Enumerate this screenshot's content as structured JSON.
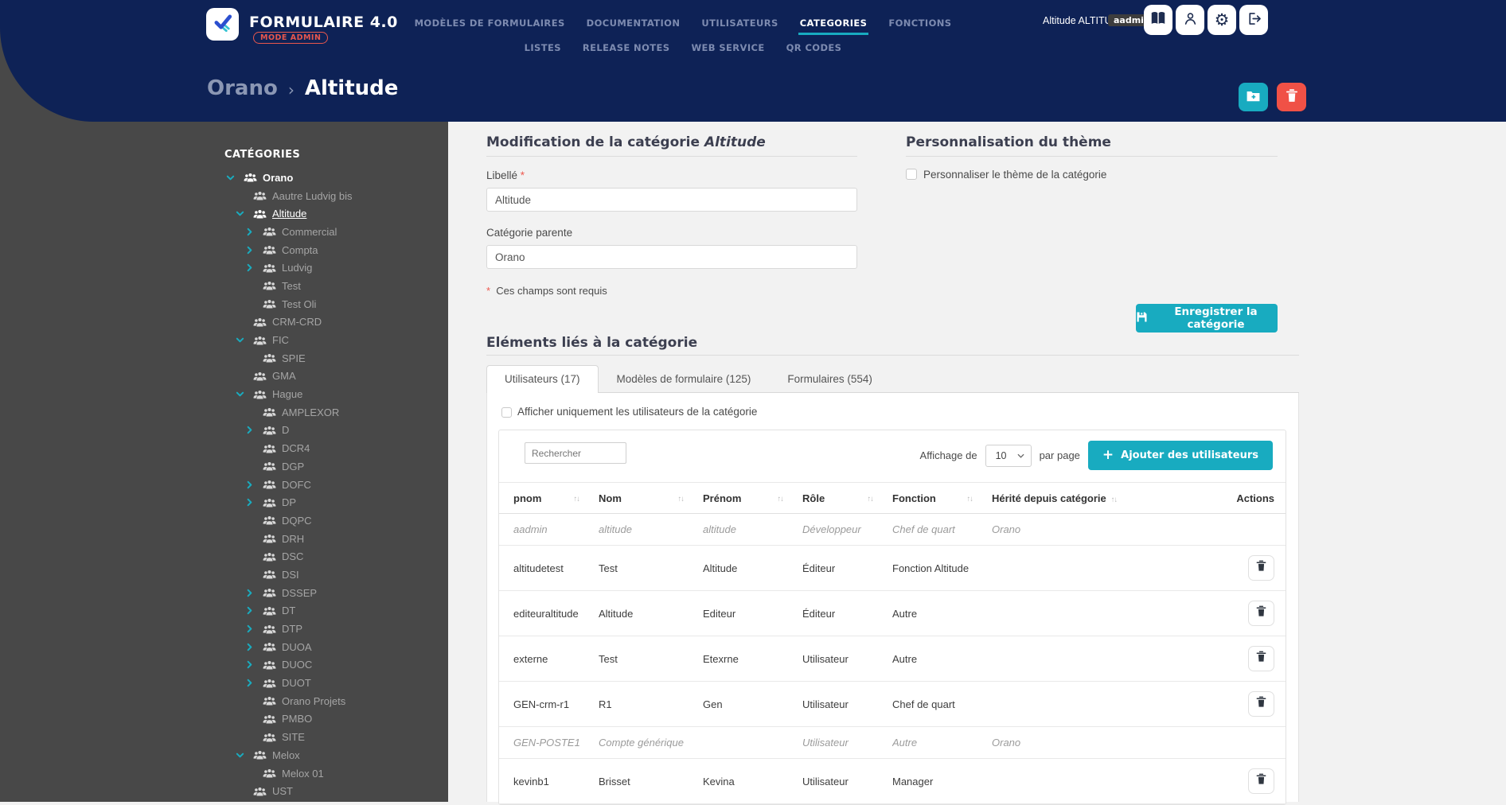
{
  "colors": {
    "navy": "#0e2256",
    "teal": "#18abc0",
    "red": "#f05146",
    "sidebar_gray": "#484848"
  },
  "header": {
    "brand": "FORMULAIRE 4.0",
    "mode_badge": "MODE ADMIN",
    "nav_primary": [
      {
        "label": "MODÈLES DE FORMULAIRES",
        "active": false
      },
      {
        "label": "DOCUMENTATION",
        "active": false
      },
      {
        "label": "UTILISATEURS",
        "active": false
      },
      {
        "label": "CATEGORIES",
        "active": true
      },
      {
        "label": "FONCTIONS",
        "active": false
      }
    ],
    "nav_secondary": [
      {
        "label": "LISTES",
        "active": false
      },
      {
        "label": "RELEASE NOTES",
        "active": false
      },
      {
        "label": "WEB SERVICE",
        "active": false
      },
      {
        "label": "QR CODES",
        "active": false
      }
    ],
    "user_name": "Altitude ALTITUDE",
    "user_badge": "aadmin"
  },
  "breadcrumb": {
    "parent": "Orano",
    "separator": "›",
    "current": "Altitude"
  },
  "sidebar": {
    "title": "CATÉGORIES",
    "items": [
      {
        "label": "Orano",
        "level": 1,
        "chevron": "down",
        "active": false
      },
      {
        "label": "Aautre Ludvig bis",
        "level": 2,
        "chevron": "none",
        "active": false
      },
      {
        "label": "Altitude",
        "level": 2,
        "chevron": "down",
        "active": true
      },
      {
        "label": "Commercial",
        "level": 3,
        "chevron": "right",
        "active": false
      },
      {
        "label": "Compta",
        "level": 3,
        "chevron": "right",
        "active": false
      },
      {
        "label": "Ludvig",
        "level": 3,
        "chevron": "right",
        "active": false
      },
      {
        "label": "Test",
        "level": 3,
        "chevron": "none",
        "active": false
      },
      {
        "label": "Test Oli",
        "level": 3,
        "chevron": "none",
        "active": false
      },
      {
        "label": "CRM-CRD",
        "level": 2,
        "chevron": "none",
        "active": false
      },
      {
        "label": "FIC",
        "level": 2,
        "chevron": "down",
        "active": false
      },
      {
        "label": "SPIE",
        "level": 3,
        "chevron": "none",
        "active": false
      },
      {
        "label": "GMA",
        "level": 2,
        "chevron": "none",
        "active": false
      },
      {
        "label": "Hague",
        "level": 2,
        "chevron": "down",
        "active": false
      },
      {
        "label": "AMPLEXOR",
        "level": 3,
        "chevron": "none",
        "active": false
      },
      {
        "label": "D",
        "level": 3,
        "chevron": "right",
        "active": false
      },
      {
        "label": "DCR4",
        "level": 3,
        "chevron": "none",
        "active": false
      },
      {
        "label": "DGP",
        "level": 3,
        "chevron": "none",
        "active": false
      },
      {
        "label": "DOFC",
        "level": 3,
        "chevron": "right",
        "active": false
      },
      {
        "label": "DP",
        "level": 3,
        "chevron": "right",
        "active": false
      },
      {
        "label": "DQPC",
        "level": 3,
        "chevron": "none",
        "active": false
      },
      {
        "label": "DRH",
        "level": 3,
        "chevron": "none",
        "active": false
      },
      {
        "label": "DSC",
        "level": 3,
        "chevron": "none",
        "active": false
      },
      {
        "label": "DSI",
        "level": 3,
        "chevron": "none",
        "active": false
      },
      {
        "label": "DSSEP",
        "level": 3,
        "chevron": "right",
        "active": false
      },
      {
        "label": "DT",
        "level": 3,
        "chevron": "right",
        "active": false
      },
      {
        "label": "DTP",
        "level": 3,
        "chevron": "right",
        "active": false
      },
      {
        "label": "DUOA",
        "level": 3,
        "chevron": "right",
        "active": false
      },
      {
        "label": "DUOC",
        "level": 3,
        "chevron": "right",
        "active": false
      },
      {
        "label": "DUOT",
        "level": 3,
        "chevron": "right",
        "active": false
      },
      {
        "label": "Orano Projets",
        "level": 3,
        "chevron": "none",
        "active": false
      },
      {
        "label": "PMBO",
        "level": 3,
        "chevron": "none",
        "active": false
      },
      {
        "label": "SITE",
        "level": 3,
        "chevron": "none",
        "active": false
      },
      {
        "label": "Melox",
        "level": 2,
        "chevron": "down",
        "active": false
      },
      {
        "label": "Melox 01",
        "level": 3,
        "chevron": "none",
        "active": false
      },
      {
        "label": "UST",
        "level": 2,
        "chevron": "none",
        "active": false
      }
    ]
  },
  "form": {
    "title_prefix": "Modification de la catégorie ",
    "title_emphasis": "Altitude",
    "libelle_label": "Libellé",
    "required_star": "*",
    "libelle_value": "Altitude",
    "parent_label": "Catégorie parente",
    "parent_value": "Orano",
    "required_note": "Ces champs sont requis"
  },
  "theme": {
    "title": "Personnalisation du thème",
    "checkbox_label": "Personnaliser le thème de la catégorie",
    "save_button": "Enregistrer la catégorie"
  },
  "related": {
    "title": "Eléments liés à la catégorie",
    "tabs": [
      {
        "label": "Utilisateurs (17)",
        "active": true
      },
      {
        "label": "Modèles de formulaire (125)",
        "active": false
      },
      {
        "label": "Formulaires (554)",
        "active": false
      }
    ],
    "filter_checkbox_label": "Afficher uniquement les utilisateurs de la catégorie",
    "search_placeholder": "Rechercher",
    "page_size_prefix": "Affichage de",
    "page_size_value": "10",
    "page_size_suffix": "par page",
    "add_button": "Ajouter des utilisateurs"
  },
  "table": {
    "columns": [
      {
        "key": "pnom",
        "label": "pnom",
        "sortable": true
      },
      {
        "key": "nom",
        "label": "Nom",
        "sortable": true
      },
      {
        "key": "prenom",
        "label": "Prénom",
        "sortable": true
      },
      {
        "key": "role",
        "label": "Rôle",
        "sortable": true
      },
      {
        "key": "fonction",
        "label": "Fonction",
        "sortable": true
      },
      {
        "key": "herite",
        "label": "Hérité depuis catégorie",
        "sortable": true
      },
      {
        "key": "actions",
        "label": "Actions",
        "sortable": false
      }
    ],
    "rows": [
      {
        "pnom": "aadmin",
        "nom": "altitude",
        "prenom": "altitude",
        "role": "Développeur",
        "fonction": "Chef de quart",
        "herite": "Orano",
        "muted": true,
        "deletable": false
      },
      {
        "pnom": "altitudetest",
        "nom": "Test",
        "prenom": "Altitude",
        "role": "Éditeur",
        "fonction": "Fonction Altitude",
        "herite": "",
        "muted": false,
        "deletable": true
      },
      {
        "pnom": "editeuraltitude",
        "nom": "Altitude",
        "prenom": "Editeur",
        "role": "Éditeur",
        "fonction": "Autre",
        "herite": "",
        "muted": false,
        "deletable": true
      },
      {
        "pnom": "externe",
        "nom": "Test",
        "prenom": "Etexrne",
        "role": "Utilisateur",
        "fonction": "Autre",
        "herite": "",
        "muted": false,
        "deletable": true
      },
      {
        "pnom": "GEN-crm-r1",
        "nom": "R1",
        "prenom": "Gen",
        "role": "Utilisateur",
        "fonction": "Chef de quart",
        "herite": "",
        "muted": false,
        "deletable": true
      },
      {
        "pnom": "GEN-POSTE1",
        "nom": "Compte générique",
        "prenom": "",
        "role": "Utilisateur",
        "fonction": "Autre",
        "herite": "Orano",
        "muted": true,
        "deletable": false
      },
      {
        "pnom": "kevinb1",
        "nom": "Brisset",
        "prenom": "Kevina",
        "role": "Utilisateur",
        "fonction": "Manager",
        "herite": "",
        "muted": false,
        "deletable": true
      }
    ]
  }
}
